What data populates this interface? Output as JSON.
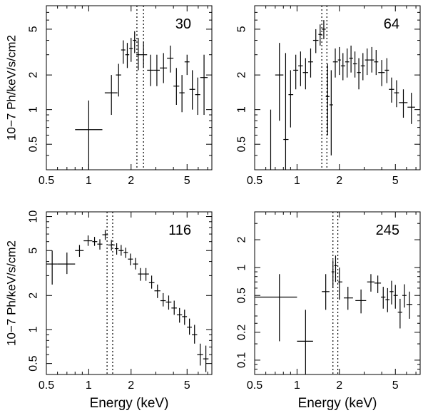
{
  "chart_data": [
    {
      "type": "scatter",
      "panel_label": "30",
      "xlabel": "",
      "ylabel": "10−7 Ph/keV/s/cm2",
      "xscale": "log",
      "yscale": "log",
      "xlim": [
        0.5,
        7.5
      ],
      "ylim": [
        0.3,
        8
      ],
      "x_ticks": [
        "0.5",
        "1",
        "2",
        "5"
      ],
      "y_ticks": [
        "0.5",
        "1",
        "2",
        "5"
      ],
      "line_energies_keV": [
        2.2,
        2.45
      ],
      "points": [
        {
          "x": 1.0,
          "xlo": 0.8,
          "xhi": 1.25,
          "y": 0.67,
          "ylo": 0.3,
          "yhi": 1.2
        },
        {
          "x": 1.45,
          "xlo": 1.3,
          "xhi": 1.6,
          "y": 1.4,
          "ylo": 0.9,
          "yhi": 2.0
        },
        {
          "x": 1.63,
          "xlo": 1.56,
          "xhi": 1.7,
          "y": 2.0,
          "ylo": 1.3,
          "yhi": 2.5
        },
        {
          "x": 1.76,
          "xlo": 1.7,
          "xhi": 1.82,
          "y": 3.3,
          "ylo": 2.5,
          "yhi": 4.0
        },
        {
          "x": 1.88,
          "xlo": 1.82,
          "xhi": 1.94,
          "y": 3.0,
          "ylo": 2.3,
          "yhi": 3.8
        },
        {
          "x": 2.0,
          "xlo": 1.94,
          "xhi": 2.06,
          "y": 3.4,
          "ylo": 2.6,
          "yhi": 4.2
        },
        {
          "x": 2.12,
          "xlo": 2.06,
          "xhi": 2.18,
          "y": 4.0,
          "ylo": 3.1,
          "yhi": 4.8
        },
        {
          "x": 2.25,
          "xlo": 2.18,
          "xhi": 2.32,
          "y": 3.0,
          "ylo": 2.2,
          "yhi": 4.2
        },
        {
          "x": 2.45,
          "xlo": 2.32,
          "xhi": 2.6,
          "y": 3.0,
          "ylo": 2.3,
          "yhi": 3.9
        },
        {
          "x": 2.75,
          "xlo": 2.6,
          "xhi": 2.9,
          "y": 2.2,
          "ylo": 1.6,
          "yhi": 3.0
        },
        {
          "x": 3.05,
          "xlo": 2.9,
          "xhi": 3.2,
          "y": 2.2,
          "ylo": 1.6,
          "yhi": 3.0
        },
        {
          "x": 3.4,
          "xlo": 3.2,
          "xhi": 3.6,
          "y": 2.3,
          "ylo": 1.7,
          "yhi": 3.1
        },
        {
          "x": 3.8,
          "xlo": 3.6,
          "xhi": 4.0,
          "y": 2.8,
          "ylo": 2.1,
          "yhi": 3.6
        },
        {
          "x": 4.2,
          "xlo": 4.0,
          "xhi": 4.4,
          "y": 1.6,
          "ylo": 1.1,
          "yhi": 2.3
        },
        {
          "x": 4.6,
          "xlo": 4.4,
          "xhi": 4.8,
          "y": 1.4,
          "ylo": 0.95,
          "yhi": 2.0
        },
        {
          "x": 5.0,
          "xlo": 4.8,
          "xhi": 5.2,
          "y": 2.6,
          "ylo": 2.0,
          "yhi": 3.0
        },
        {
          "x": 5.45,
          "xlo": 5.2,
          "xhi": 5.7,
          "y": 1.5,
          "ylo": 1.0,
          "yhi": 2.2
        },
        {
          "x": 5.95,
          "xlo": 5.7,
          "xhi": 6.2,
          "y": 1.35,
          "ylo": 0.9,
          "yhi": 1.9
        },
        {
          "x": 6.6,
          "xlo": 6.2,
          "xhi": 7.0,
          "y": 1.9,
          "ylo": 0.9,
          "yhi": 3.0
        }
      ]
    },
    {
      "type": "scatter",
      "panel_label": "64",
      "xlabel": "",
      "ylabel": "",
      "xscale": "log",
      "yscale": "log",
      "xlim": [
        0.5,
        7.5
      ],
      "ylim": [
        0.3,
        8
      ],
      "x_ticks": [
        "0.5",
        "1",
        "2",
        "5"
      ],
      "y_ticks": [
        "0.5",
        "1",
        "2",
        "5"
      ],
      "line_energies_keV": [
        1.5,
        1.63
      ],
      "points": [
        {
          "x": 0.65,
          "xlo": 0.65,
          "xhi": 0.65,
          "y": 0.3,
          "ylo": 0.3,
          "yhi": 1.0
        },
        {
          "x": 0.75,
          "xlo": 0.7,
          "xhi": 0.8,
          "y": 2.0,
          "ylo": 0.8,
          "yhi": 3.8
        },
        {
          "x": 0.83,
          "xlo": 0.8,
          "xhi": 0.87,
          "y": 0.55,
          "ylo": 0.3,
          "yhi": 3.1
        },
        {
          "x": 0.9,
          "xlo": 0.87,
          "xhi": 0.94,
          "y": 1.35,
          "ylo": 0.7,
          "yhi": 2.2
        },
        {
          "x": 0.98,
          "xlo": 0.94,
          "xhi": 1.02,
          "y": 2.2,
          "ylo": 1.5,
          "yhi": 3.0
        },
        {
          "x": 1.06,
          "xlo": 1.02,
          "xhi": 1.1,
          "y": 2.4,
          "ylo": 1.6,
          "yhi": 3.2
        },
        {
          "x": 1.15,
          "xlo": 1.1,
          "xhi": 1.2,
          "y": 2.1,
          "ylo": 1.5,
          "yhi": 2.8
        },
        {
          "x": 1.25,
          "xlo": 1.2,
          "xhi": 1.3,
          "y": 2.6,
          "ylo": 1.9,
          "yhi": 3.4
        },
        {
          "x": 1.36,
          "xlo": 1.3,
          "xhi": 1.42,
          "y": 4.0,
          "ylo": 3.1,
          "yhi": 5.0
        },
        {
          "x": 1.46,
          "xlo": 1.42,
          "xhi": 1.5,
          "y": 4.5,
          "ylo": 3.6,
          "yhi": 5.5
        },
        {
          "x": 1.55,
          "xlo": 1.5,
          "xhi": 1.6,
          "y": 5.0,
          "ylo": 4.1,
          "yhi": 6.0
        },
        {
          "x": 1.65,
          "xlo": 1.6,
          "xhi": 1.7,
          "y": 1.3,
          "ylo": 0.6,
          "yhi": 2.5
        },
        {
          "x": 1.75,
          "xlo": 1.7,
          "xhi": 1.8,
          "y": 1.1,
          "ylo": 0.4,
          "yhi": 2.2
        },
        {
          "x": 1.87,
          "xlo": 1.8,
          "xhi": 1.95,
          "y": 2.6,
          "ylo": 1.9,
          "yhi": 3.4
        },
        {
          "x": 2.0,
          "xlo": 1.95,
          "xhi": 2.05,
          "y": 2.7,
          "ylo": 2.0,
          "yhi": 3.5
        },
        {
          "x": 2.12,
          "xlo": 2.05,
          "xhi": 2.2,
          "y": 2.4,
          "ylo": 1.8,
          "yhi": 3.1
        },
        {
          "x": 2.27,
          "xlo": 2.2,
          "xhi": 2.35,
          "y": 2.6,
          "ylo": 1.9,
          "yhi": 3.4
        },
        {
          "x": 2.42,
          "xlo": 2.35,
          "xhi": 2.5,
          "y": 2.8,
          "ylo": 2.1,
          "yhi": 3.6
        },
        {
          "x": 2.58,
          "xlo": 2.5,
          "xhi": 2.67,
          "y": 2.5,
          "ylo": 1.9,
          "yhi": 3.2
        },
        {
          "x": 2.75,
          "xlo": 2.67,
          "xhi": 2.84,
          "y": 2.1,
          "ylo": 1.5,
          "yhi": 2.8
        },
        {
          "x": 2.94,
          "xlo": 2.84,
          "xhi": 3.04,
          "y": 2.4,
          "ylo": 1.8,
          "yhi": 3.1
        },
        {
          "x": 3.15,
          "xlo": 3.04,
          "xhi": 3.27,
          "y": 2.7,
          "ylo": 2.0,
          "yhi": 3.4
        },
        {
          "x": 3.4,
          "xlo": 3.27,
          "xhi": 3.53,
          "y": 2.7,
          "ylo": 2.1,
          "yhi": 3.5
        },
        {
          "x": 3.65,
          "xlo": 3.53,
          "xhi": 3.78,
          "y": 2.6,
          "ylo": 2.0,
          "yhi": 3.3
        },
        {
          "x": 4.0,
          "xlo": 3.78,
          "xhi": 4.2,
          "y": 2.1,
          "ylo": 1.6,
          "yhi": 2.7
        },
        {
          "x": 4.35,
          "xlo": 4.2,
          "xhi": 4.5,
          "y": 2.2,
          "ylo": 1.7,
          "yhi": 2.8
        },
        {
          "x": 4.7,
          "xlo": 4.5,
          "xhi": 4.9,
          "y": 1.5,
          "ylo": 1.15,
          "yhi": 1.9
        },
        {
          "x": 5.1,
          "xlo": 4.9,
          "xhi": 5.3,
          "y": 1.4,
          "ylo": 1.05,
          "yhi": 1.8
        },
        {
          "x": 5.7,
          "xlo": 5.3,
          "xhi": 6.1,
          "y": 1.15,
          "ylo": 0.85,
          "yhi": 1.5
        },
        {
          "x": 6.5,
          "xlo": 6.1,
          "xhi": 6.9,
          "y": 1.05,
          "ylo": 0.75,
          "yhi": 1.4
        }
      ]
    },
    {
      "type": "scatter",
      "panel_label": "116",
      "xlabel": "Energy (keV)",
      "ylabel": "10−7 Ph/keV/s/cm2",
      "xscale": "log",
      "yscale": "log",
      "xlim": [
        0.5,
        7.5
      ],
      "ylim": [
        0.4,
        11
      ],
      "x_ticks": [
        "0.5",
        "1",
        "2",
        "5"
      ],
      "y_ticks": [
        "0.5",
        "1",
        "2",
        "5",
        "10"
      ],
      "line_energies_keV": [
        1.35,
        1.48
      ],
      "points": [
        {
          "x": 0.55,
          "xlo": 0.5,
          "xhi": 0.6,
          "y": 3.8,
          "ylo": 2.5,
          "yhi": 5.0
        },
        {
          "x": 0.7,
          "xlo": 0.6,
          "xhi": 0.8,
          "y": 3.8,
          "ylo": 3.1,
          "yhi": 4.8
        },
        {
          "x": 0.86,
          "xlo": 0.8,
          "xhi": 0.92,
          "y": 5.0,
          "ylo": 4.4,
          "yhi": 5.6
        },
        {
          "x": 0.99,
          "xlo": 0.92,
          "xhi": 1.06,
          "y": 6.1,
          "ylo": 5.5,
          "yhi": 6.8
        },
        {
          "x": 1.1,
          "xlo": 1.06,
          "xhi": 1.15,
          "y": 6.0,
          "ylo": 5.5,
          "yhi": 6.6
        },
        {
          "x": 1.2,
          "xlo": 1.15,
          "xhi": 1.25,
          "y": 5.7,
          "ylo": 5.1,
          "yhi": 6.3
        },
        {
          "x": 1.31,
          "xlo": 1.25,
          "xhi": 1.37,
          "y": 6.9,
          "ylo": 6.2,
          "yhi": 7.6
        },
        {
          "x": 1.45,
          "xlo": 1.37,
          "xhi": 1.53,
          "y": 5.6,
          "ylo": 5.0,
          "yhi": 6.2
        },
        {
          "x": 1.58,
          "xlo": 1.53,
          "xhi": 1.63,
          "y": 5.2,
          "ylo": 4.6,
          "yhi": 5.8
        },
        {
          "x": 1.7,
          "xlo": 1.63,
          "xhi": 1.77,
          "y": 5.0,
          "ylo": 4.5,
          "yhi": 5.6
        },
        {
          "x": 1.83,
          "xlo": 1.77,
          "xhi": 1.9,
          "y": 4.8,
          "ylo": 4.3,
          "yhi": 5.3
        },
        {
          "x": 1.98,
          "xlo": 1.9,
          "xhi": 2.06,
          "y": 4.2,
          "ylo": 3.7,
          "yhi": 4.7
        },
        {
          "x": 2.15,
          "xlo": 2.06,
          "xhi": 2.24,
          "y": 3.8,
          "ylo": 3.4,
          "yhi": 4.3
        },
        {
          "x": 2.33,
          "xlo": 2.24,
          "xhi": 2.43,
          "y": 3.1,
          "ylo": 2.7,
          "yhi": 3.5
        },
        {
          "x": 2.55,
          "xlo": 2.43,
          "xhi": 2.68,
          "y": 3.1,
          "ylo": 2.7,
          "yhi": 3.5
        },
        {
          "x": 2.8,
          "xlo": 2.68,
          "xhi": 2.93,
          "y": 2.6,
          "ylo": 2.3,
          "yhi": 3.0
        },
        {
          "x": 3.08,
          "xlo": 2.93,
          "xhi": 3.23,
          "y": 2.2,
          "ylo": 1.9,
          "yhi": 2.5
        },
        {
          "x": 3.38,
          "xlo": 3.23,
          "xhi": 3.53,
          "y": 1.8,
          "ylo": 1.6,
          "yhi": 2.1
        },
        {
          "x": 3.7,
          "xlo": 3.53,
          "xhi": 3.87,
          "y": 1.75,
          "ylo": 1.5,
          "yhi": 2.0
        },
        {
          "x": 4.05,
          "xlo": 3.87,
          "xhi": 4.23,
          "y": 1.55,
          "ylo": 1.35,
          "yhi": 1.8
        },
        {
          "x": 4.42,
          "xlo": 4.23,
          "xhi": 4.61,
          "y": 1.35,
          "ylo": 1.15,
          "yhi": 1.55
        },
        {
          "x": 4.8,
          "xlo": 4.61,
          "xhi": 4.99,
          "y": 1.3,
          "ylo": 1.1,
          "yhi": 1.5
        },
        {
          "x": 5.2,
          "xlo": 4.99,
          "xhi": 5.41,
          "y": 1.05,
          "ylo": 0.9,
          "yhi": 1.25
        },
        {
          "x": 5.65,
          "xlo": 5.41,
          "xhi": 5.9,
          "y": 0.9,
          "ylo": 0.75,
          "yhi": 1.1
        },
        {
          "x": 6.2,
          "xlo": 5.9,
          "xhi": 6.5,
          "y": 0.6,
          "ylo": 0.48,
          "yhi": 0.75
        },
        {
          "x": 6.8,
          "xlo": 6.5,
          "xhi": 7.1,
          "y": 0.55,
          "ylo": 0.42,
          "yhi": 0.72
        }
      ]
    },
    {
      "type": "scatter",
      "panel_label": "245",
      "xlabel": "Energy (keV)",
      "ylabel": "",
      "xscale": "log",
      "yscale": "log",
      "xlim": [
        0.5,
        7.5
      ],
      "ylim": [
        0.07,
        4
      ],
      "x_ticks": [
        "0.5",
        "1",
        "2",
        "5"
      ],
      "y_ticks": [
        "0.1",
        "0.2",
        "0.5",
        "1",
        "2"
      ],
      "line_energies_keV": [
        1.8,
        1.95
      ],
      "points": [
        {
          "x": 0.75,
          "xlo": 0.5,
          "xhi": 1.0,
          "y": 0.48,
          "ylo": 0.16,
          "yhi": 0.85
        },
        {
          "x": 1.15,
          "xlo": 1.0,
          "xhi": 1.3,
          "y": 0.16,
          "ylo": 0.06,
          "yhi": 0.35
        },
        {
          "x": 1.6,
          "xlo": 1.5,
          "xhi": 1.7,
          "y": 0.55,
          "ylo": 0.35,
          "yhi": 0.85
        },
        {
          "x": 1.8,
          "xlo": 1.76,
          "xhi": 1.84,
          "y": 0.9,
          "ylo": 0.6,
          "yhi": 1.2
        },
        {
          "x": 1.88,
          "xlo": 1.84,
          "xhi": 1.92,
          "y": 1.05,
          "ylo": 0.7,
          "yhi": 1.35
        },
        {
          "x": 2.0,
          "xlo": 1.95,
          "xhi": 2.1,
          "y": 0.7,
          "ylo": 0.45,
          "yhi": 1.0
        },
        {
          "x": 2.3,
          "xlo": 2.15,
          "xhi": 2.5,
          "y": 0.47,
          "ylo": 0.35,
          "yhi": 0.62
        },
        {
          "x": 2.85,
          "xlo": 2.6,
          "xhi": 3.1,
          "y": 0.44,
          "ylo": 0.32,
          "yhi": 0.58
        },
        {
          "x": 3.35,
          "xlo": 3.15,
          "xhi": 3.55,
          "y": 0.7,
          "ylo": 0.55,
          "yhi": 0.85
        },
        {
          "x": 3.75,
          "xlo": 3.55,
          "xhi": 3.95,
          "y": 0.68,
          "ylo": 0.53,
          "yhi": 0.82
        },
        {
          "x": 4.1,
          "xlo": 3.95,
          "xhi": 4.25,
          "y": 0.48,
          "ylo": 0.36,
          "yhi": 0.62
        },
        {
          "x": 4.4,
          "xlo": 4.25,
          "xhi": 4.55,
          "y": 0.45,
          "ylo": 0.33,
          "yhi": 0.6
        },
        {
          "x": 4.7,
          "xlo": 4.55,
          "xhi": 4.85,
          "y": 0.55,
          "ylo": 0.4,
          "yhi": 0.72
        },
        {
          "x": 5.0,
          "xlo": 4.85,
          "xhi": 5.2,
          "y": 0.5,
          "ylo": 0.36,
          "yhi": 0.65
        },
        {
          "x": 5.4,
          "xlo": 5.2,
          "xhi": 5.6,
          "y": 0.33,
          "ylo": 0.22,
          "yhi": 0.46
        },
        {
          "x": 5.8,
          "xlo": 5.6,
          "xhi": 6.0,
          "y": 0.5,
          "ylo": 0.37,
          "yhi": 0.66
        },
        {
          "x": 6.3,
          "xlo": 6.0,
          "xhi": 6.6,
          "y": 0.4,
          "ylo": 0.28,
          "yhi": 0.55
        }
      ]
    }
  ]
}
